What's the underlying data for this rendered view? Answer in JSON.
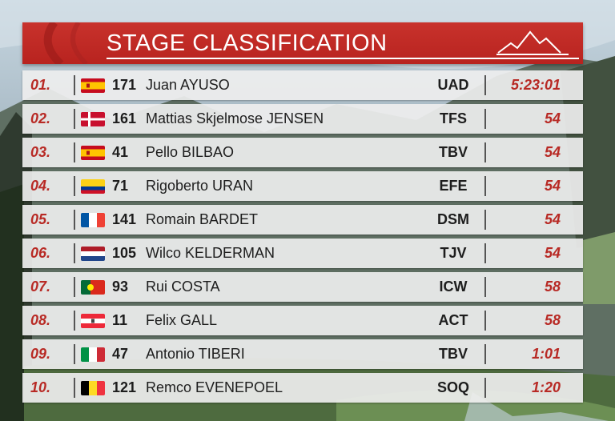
{
  "header": {
    "title": "STAGE CLASSIFICATION",
    "logo_icon": "mountain-peaks-icon",
    "accent_color": "#c02a25"
  },
  "rows": [
    {
      "position": "01.",
      "flag": "ES",
      "bib": "171",
      "name": "Juan AYUSO",
      "team": "UAD",
      "time": "5:23:01"
    },
    {
      "position": "02.",
      "flag": "DK",
      "bib": "161",
      "name": "Mattias Skjelmose JENSEN",
      "team": "TFS",
      "time": "54"
    },
    {
      "position": "03.",
      "flag": "ES",
      "bib": "41",
      "name": "Pello BILBAO",
      "team": "TBV",
      "time": "54"
    },
    {
      "position": "04.",
      "flag": "CO",
      "bib": "71",
      "name": "Rigoberto URAN",
      "team": "EFE",
      "time": "54"
    },
    {
      "position": "05.",
      "flag": "FR",
      "bib": "141",
      "name": "Romain BARDET",
      "team": "DSM",
      "time": "54"
    },
    {
      "position": "06.",
      "flag": "NL",
      "bib": "105",
      "name": "Wilco KELDERMAN",
      "team": "TJV",
      "time": "54"
    },
    {
      "position": "07.",
      "flag": "PT",
      "bib": "93",
      "name": "Rui COSTA",
      "team": "ICW",
      "time": "58"
    },
    {
      "position": "08.",
      "flag": "AT",
      "bib": "11",
      "name": "Felix GALL",
      "team": "ACT",
      "time": "58"
    },
    {
      "position": "09.",
      "flag": "IT",
      "bib": "47",
      "name": "Antonio TIBERI",
      "team": "TBV",
      "time": "1:01"
    },
    {
      "position": "10.",
      "flag": "BE",
      "bib": "121",
      "name": "Remco EVENEPOEL",
      "team": "SOQ",
      "time": "1:20"
    }
  ]
}
